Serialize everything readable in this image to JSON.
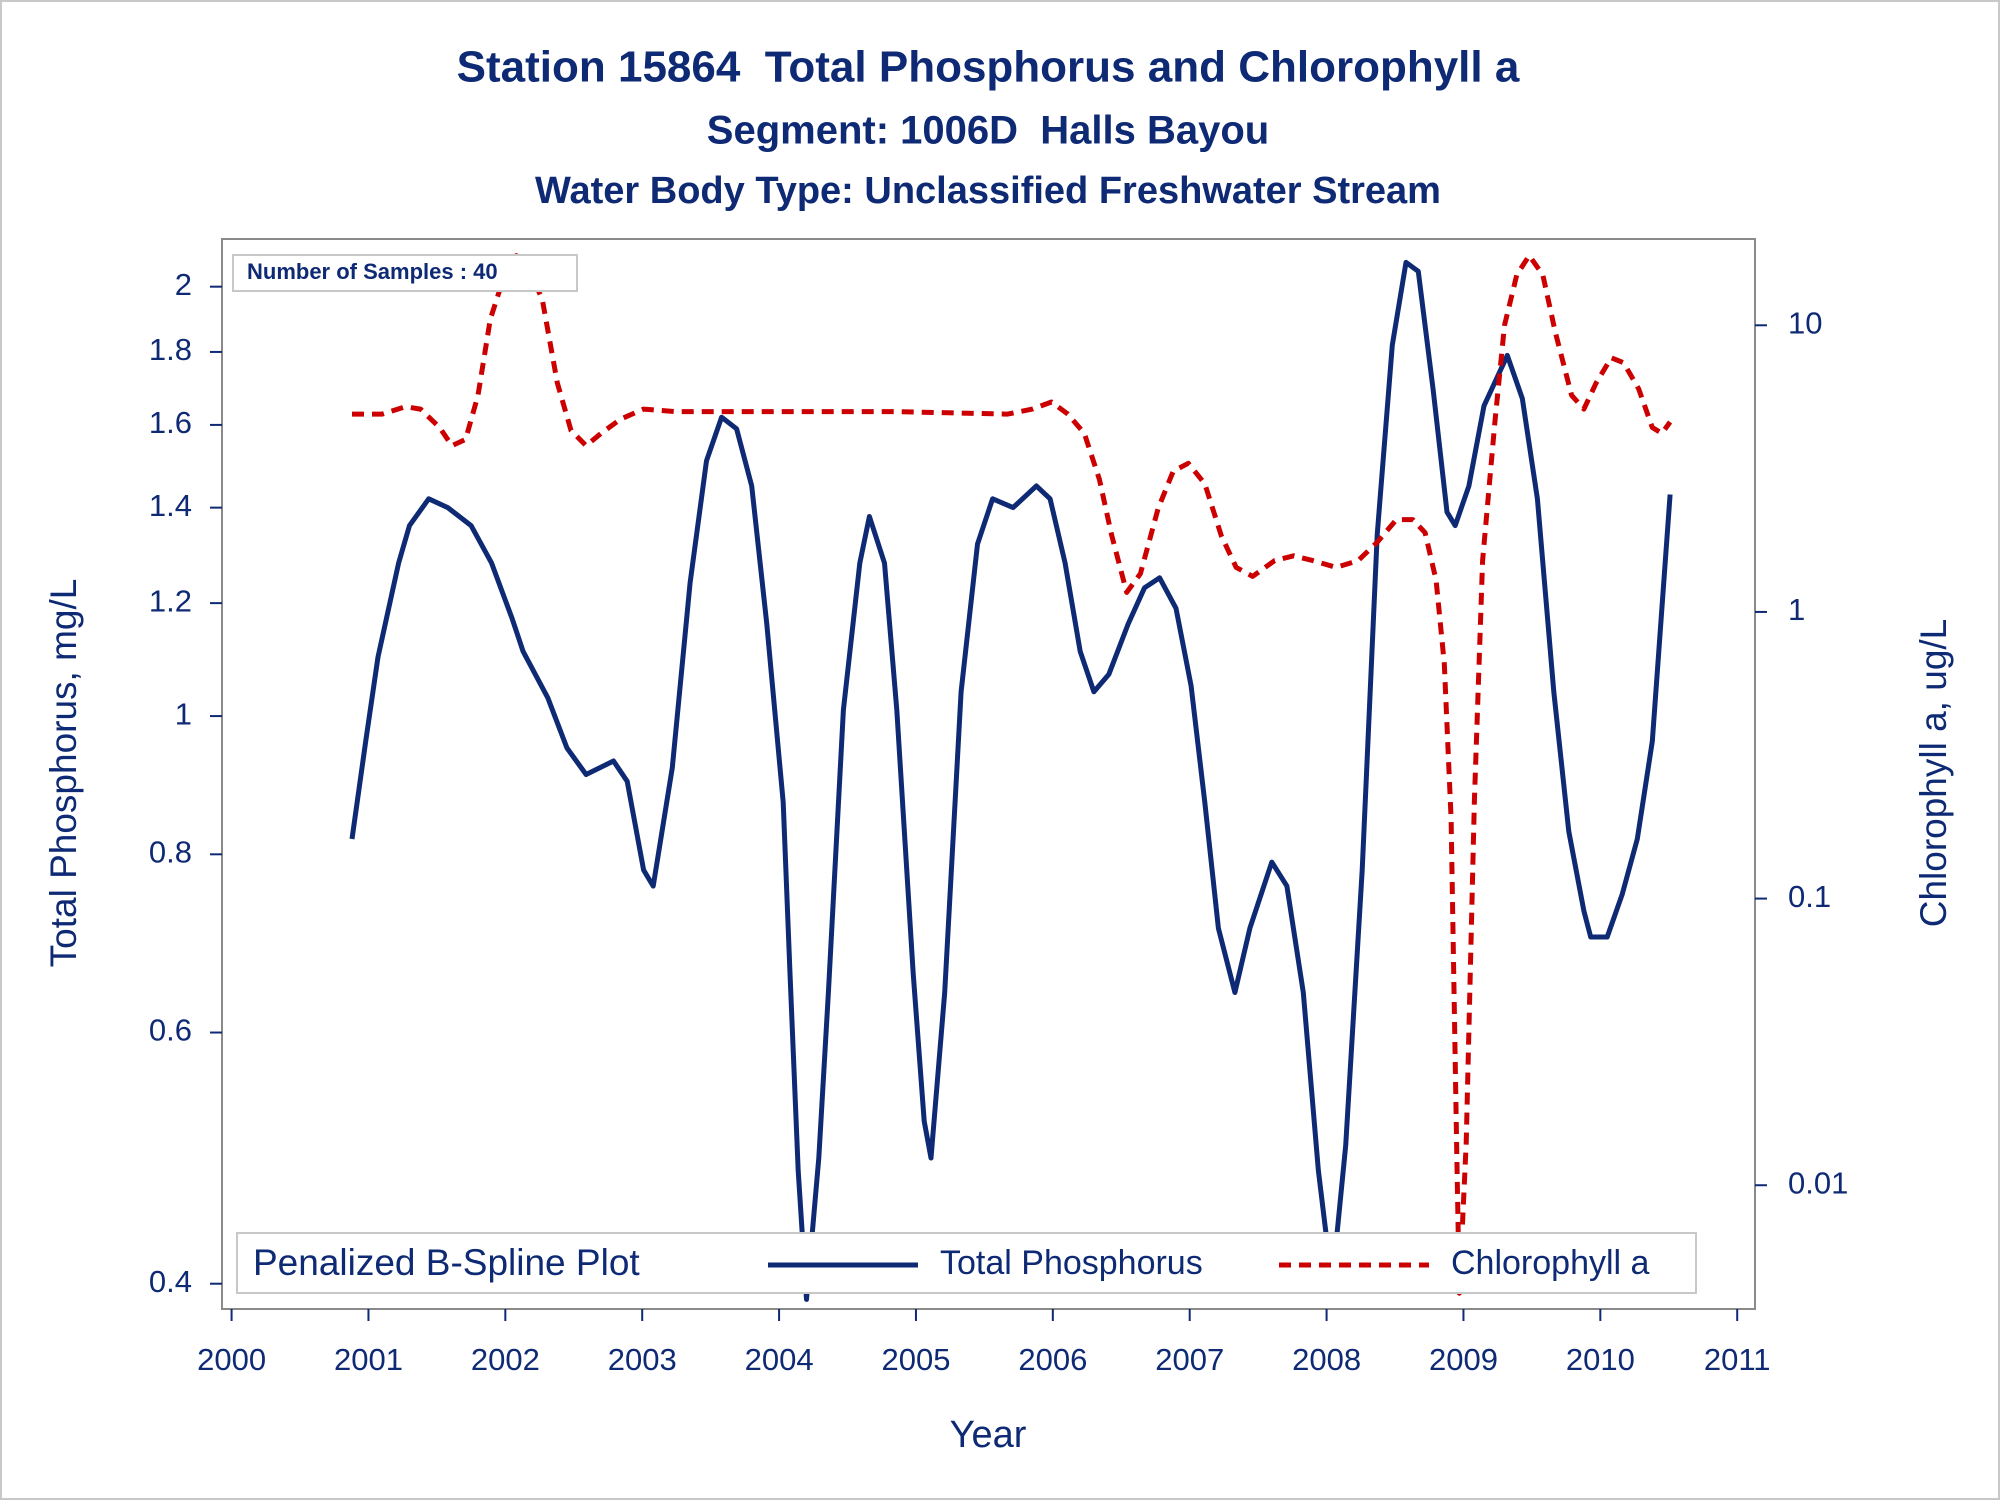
{
  "chart_data": {
    "type": "line",
    "title": "Station 15864  Total Phosphorus and Chlorophyll a",
    "subtitle": "Segment: 1006D  Halls Bayou",
    "subtitle2": "Water Body Type: Unclassified Freshwater Stream",
    "annotation": "Number of Samples : 40",
    "legend_title": "Penalized B-Spline Plot",
    "legend": "bottom",
    "xlabel": "Year",
    "ylabel": "Total Phosphorus, mg/L",
    "y2label": "Chlorophyll a, ug/L",
    "xlim": [
      1999.93,
      2011.13
    ],
    "xticks": [
      2000,
      2001,
      2002,
      2003,
      2004,
      2005,
      2006,
      2007,
      2008,
      2009,
      2010,
      2011
    ],
    "ylim": [
      0.384,
      2.16
    ],
    "yticks": [
      0.4,
      0.6,
      0.8,
      1,
      1.2,
      1.4,
      1.6,
      1.8,
      2
    ],
    "ylog": true,
    "y2lim": [
      0.0037,
      20
    ],
    "y2ticks": [
      0.01,
      0.1,
      1,
      10
    ],
    "y2log": true,
    "series": [
      {
        "name": "Total Phosphorus",
        "color": "#0f2a74",
        "dash": false,
        "x": [
          2000.88,
          2000.98,
          2001.07,
          2001.22,
          2001.3,
          2001.44,
          2001.58,
          2001.75,
          2001.9,
          2002.05,
          2002.13,
          2002.31,
          2002.45,
          2002.59,
          2002.79,
          2002.89,
          2003.01,
          2003.08,
          2003.22,
          2003.35,
          2003.47,
          2003.58,
          2003.69,
          2003.8,
          2003.91,
          2004.03,
          2004.08,
          2004.14,
          2004.2,
          2004.29,
          2004.36,
          2004.47,
          2004.59,
          2004.66,
          2004.77,
          2004.86,
          2004.98,
          2005.06,
          2005.11,
          2005.21,
          2005.33,
          2005.45,
          2005.56,
          2005.71,
          2005.88,
          2005.98,
          2006.09,
          2006.2,
          2006.3,
          2006.41,
          2006.55,
          2006.67,
          2006.78,
          2006.9,
          2007.01,
          2007.11,
          2007.21,
          2007.33,
          2007.44,
          2007.6,
          2007.71,
          2007.83,
          2007.94,
          2008.04,
          2008.14,
          2008.26,
          2008.37,
          2008.48,
          2008.58,
          2008.67,
          2008.78,
          2008.88,
          2008.94,
          2009.04,
          2009.15,
          2009.32,
          2009.43,
          2009.54,
          2009.66,
          2009.77,
          2009.88,
          2009.93,
          2010.05,
          2010.16,
          2010.27,
          2010.38,
          2010.51
        ],
        "values": [
          0.82,
          0.96,
          1.1,
          1.28,
          1.36,
          1.42,
          1.4,
          1.36,
          1.28,
          1.17,
          1.11,
          1.03,
          0.95,
          0.91,
          0.93,
          0.9,
          0.78,
          0.76,
          0.92,
          1.24,
          1.51,
          1.62,
          1.59,
          1.45,
          1.16,
          0.87,
          0.66,
          0.48,
          0.39,
          0.49,
          0.64,
          1.01,
          1.28,
          1.38,
          1.28,
          1.01,
          0.66,
          0.52,
          0.49,
          0.64,
          1.04,
          1.32,
          1.42,
          1.4,
          1.45,
          1.42,
          1.28,
          1.11,
          1.04,
          1.07,
          1.16,
          1.23,
          1.25,
          1.19,
          1.05,
          0.87,
          0.71,
          0.64,
          0.71,
          0.79,
          0.76,
          0.64,
          0.48,
          0.4,
          0.5,
          0.78,
          1.34,
          1.82,
          2.08,
          2.05,
          1.69,
          1.39,
          1.36,
          1.45,
          1.65,
          1.79,
          1.67,
          1.42,
          1.04,
          0.83,
          0.73,
          0.7,
          0.7,
          0.75,
          0.82,
          0.96,
          1.43
        ]
      },
      {
        "name": "Chlorophyll a",
        "color": "#cc0000",
        "dash": true,
        "axis": "y2",
        "x": [
          2000.88,
          2001.1,
          2001.27,
          2001.38,
          2001.52,
          2001.61,
          2001.71,
          2001.8,
          2001.89,
          2002.01,
          2002.08,
          2002.17,
          2002.27,
          2002.38,
          2002.48,
          2002.59,
          2002.7,
          2002.84,
          2003.01,
          2003.24,
          2003.9,
          2004.83,
          2005.67,
          2005.85,
          2005.99,
          2006.11,
          2006.23,
          2006.34,
          2006.43,
          2006.54,
          2006.64,
          2006.77,
          2006.88,
          2006.99,
          2007.11,
          2007.23,
          2007.34,
          2007.46,
          2007.62,
          2007.76,
          2007.9,
          2008.07,
          2008.23,
          2008.37,
          2008.51,
          2008.63,
          2008.72,
          2008.8,
          2008.86,
          2008.91,
          2008.95,
          2008.97,
          2009.02,
          2009.08,
          2009.14,
          2009.23,
          2009.3,
          2009.39,
          2009.48,
          2009.58,
          2009.67,
          2009.79,
          2009.88,
          2009.97,
          2010.08,
          2010.17,
          2010.28,
          2010.38,
          2010.45,
          2010.51
        ],
        "values": [
          4.9,
          4.9,
          5.2,
          5.1,
          4.4,
          3.8,
          4.0,
          5.7,
          10.5,
          15.8,
          17.5,
          15.8,
          12.3,
          6.3,
          4.3,
          3.8,
          4.2,
          4.7,
          5.1,
          5.0,
          5.0,
          5.0,
          4.9,
          5.1,
          5.4,
          4.9,
          4.2,
          2.9,
          1.85,
          1.17,
          1.36,
          2.3,
          3.1,
          3.3,
          2.8,
          1.85,
          1.43,
          1.33,
          1.51,
          1.57,
          1.51,
          1.43,
          1.51,
          1.75,
          2.1,
          2.1,
          1.89,
          1.29,
          0.66,
          0.19,
          0.014,
          0.0042,
          0.014,
          0.22,
          1.51,
          4.6,
          10,
          15,
          17.5,
          15,
          9.5,
          5.7,
          5.1,
          6.3,
          7.7,
          7.4,
          6.0,
          4.4,
          4.2,
          4.6
        ]
      }
    ]
  }
}
